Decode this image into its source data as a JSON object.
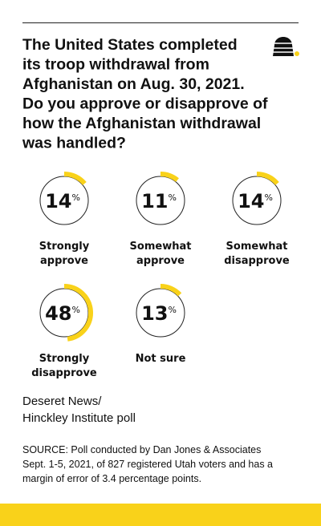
{
  "chart_data": {
    "type": "radial",
    "title": [
      "The United States completed",
      "its troop withdrawal from",
      "Afghanistan on Aug. 30, 2021.",
      "Do you approve or disapprove of",
      "how the Afghanistan withdrawal",
      "was handled?"
    ],
    "categories": [
      [
        "Strongly",
        "approve"
      ],
      [
        "Somewhat",
        "approve"
      ],
      [
        "Somewhat",
        "disapprove"
      ],
      [
        "Strongly",
        "disapprove"
      ],
      [
        "Not sure"
      ]
    ],
    "values": [
      14,
      11,
      14,
      48,
      13
    ],
    "unit": "%",
    "color": "#f9d21a",
    "credit": [
      "Deseret News/",
      "Hinckley Institute poll"
    ],
    "note": [
      "SOURCE: Poll conducted by Dan Jones & Associates",
      "Sept. 1-5, 2021, of 827 registered Utah voters and has a",
      "margin of error of 3.4 percentage points."
    ]
  }
}
